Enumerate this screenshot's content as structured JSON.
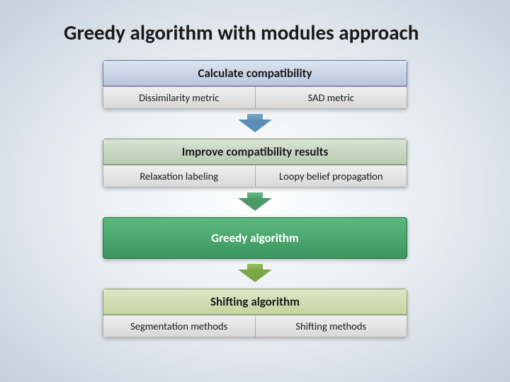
{
  "title": "Greedy algorithm with modules approach",
  "blocks": [
    {
      "header": "Calculate compatibility",
      "header_bg": "linear-gradient(to bottom, #dce4f0 0%, #b8c6dc 100%)",
      "header_border": "#6a7ea0",
      "cells": [
        "Dissimilarity metric",
        "SAD metric"
      ],
      "arrow_color": "#5a8fb5",
      "arrow_stem_bg": "linear-gradient(to bottom, #7ba8c7 0%, #5a8fb5 100%)"
    },
    {
      "header": "Improve compatibility results",
      "header_bg": "linear-gradient(to bottom, #dae4d6 0%, #b6cab0 100%)",
      "header_border": "#7a9a6e",
      "cells": [
        "Relaxation labeling",
        "Loopy belief propagation"
      ],
      "arrow_color": "#4a9a6a",
      "arrow_stem_bg": "linear-gradient(to bottom, #6ab585 0%, #4a9a6a 100%)"
    },
    {
      "solo": true,
      "header": "Greedy algorithm",
      "header_bg": "linear-gradient(to bottom, #5cb97e 0%, #3d9560 100%)",
      "header_border": "#2d7048",
      "arrow_color": "#7aa843",
      "arrow_stem_bg": "linear-gradient(to bottom, #95c05e 0%, #7aa843 100%)"
    },
    {
      "header": "Shifting algorithm",
      "header_bg": "linear-gradient(to bottom, #dde6c8 0%, #c4d4a0 100%)",
      "header_border": "#8aa060",
      "cells": [
        "Segmentation methods",
        "Shifting methods"
      ]
    }
  ]
}
